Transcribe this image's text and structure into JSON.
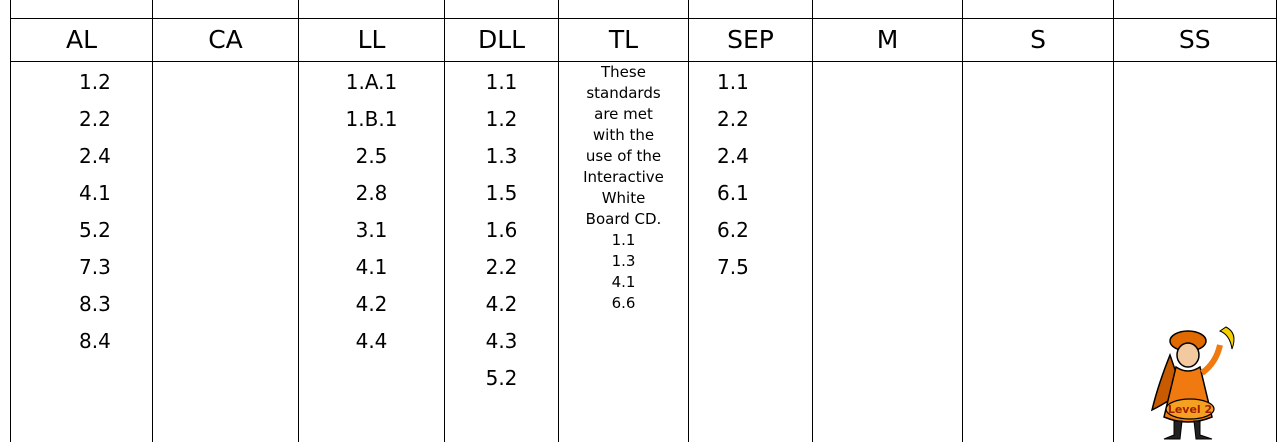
{
  "table": {
    "headers": [
      "AL",
      "CA",
      "LL",
      "DLL",
      "TL",
      "SEP",
      "M",
      "S",
      "SS"
    ],
    "cells": [
      [
        "1.2",
        "2.2",
        "2.4",
        "4.1",
        "5.2",
        "7.3",
        "8.3",
        "8.4"
      ],
      [],
      [
        "1.A.1",
        "1.B.1",
        "2.5",
        "2.8",
        "3.1",
        "4.1",
        "4.2",
        "4.4"
      ],
      [
        "1.1",
        "1.2",
        "1.3",
        "1.5",
        "1.6",
        "2.2",
        "4.2",
        "4.3",
        "5.2"
      ],
      [
        "These",
        "standards",
        "are met",
        "with the",
        "use of the",
        "Interactive",
        "White",
        "Board CD.",
        "1.1",
        "1.3",
        "4.1",
        "6.6"
      ],
      [
        "1.1",
        "2.2",
        "2.4",
        "6.1",
        "6.2",
        "7.5"
      ],
      [],
      [],
      []
    ]
  },
  "badge": "Level 2"
}
